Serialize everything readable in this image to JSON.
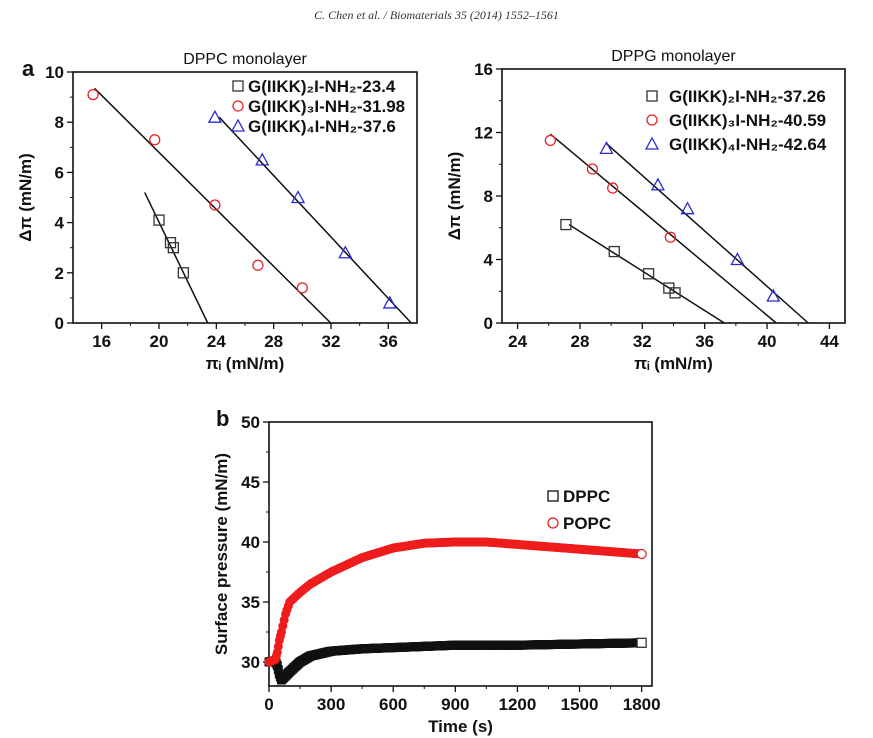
{
  "header": "C. Chen et al. / Biomaterials 35 (2014) 1552–1561",
  "chart_data": [
    {
      "panel": "a",
      "type": "scatter",
      "title": "DPPC monolayer",
      "xlabel": "πᵢ (mN/m)",
      "ylabel": "Δπ (mN/m)",
      "xlim": [
        14,
        38
      ],
      "ylim": [
        0,
        10
      ],
      "xticks": [
        16,
        20,
        24,
        28,
        32,
        36
      ],
      "yticks": [
        0,
        2,
        4,
        6,
        8,
        10
      ],
      "grid": false,
      "legend": "top-right",
      "series": [
        {
          "name": "G(IIKK)₂I-NH₂-23.4",
          "marker": "square",
          "color": "#333333",
          "x": [
            20,
            20.8,
            21,
            21.7
          ],
          "y": [
            4.1,
            3.2,
            3.0,
            2.0
          ],
          "fit": [
            [
              19,
              5.2
            ],
            [
              23.4,
              0
            ]
          ]
        },
        {
          "name": "G(IIKK)₃I-NH₂-31.98",
          "marker": "circle",
          "color": "#e8242a",
          "x": [
            15.4,
            19.7,
            23.9,
            26.9,
            30
          ],
          "y": [
            9.1,
            7.3,
            4.7,
            2.3,
            1.4
          ],
          "fit": [
            [
              15.5,
              9.35
            ],
            [
              31.98,
              0
            ]
          ]
        },
        {
          "name": "G(IIKK)₄I-NH₂-37.6",
          "marker": "triangle",
          "color": "#2a2ad0",
          "x": [
            23.9,
            27.2,
            29.7,
            33,
            36.1
          ],
          "y": [
            8.2,
            6.5,
            5.0,
            2.8,
            0.8
          ],
          "fit": [
            [
              24.2,
              8.2
            ],
            [
              37.6,
              0
            ]
          ]
        }
      ]
    },
    {
      "panel": "",
      "type": "scatter",
      "title": "DPPG monolayer",
      "xlabel": "πᵢ (mN/m)",
      "ylabel": "Δπ (mN/m)",
      "xlim": [
        23,
        45
      ],
      "ylim": [
        0,
        16
      ],
      "xticks": [
        24,
        28,
        32,
        36,
        40,
        44
      ],
      "yticks": [
        0,
        4,
        8,
        12,
        16
      ],
      "grid": false,
      "legend": "top-right",
      "series": [
        {
          "name": "G(IIKK)₂I-NH₂-37.26",
          "marker": "square",
          "color": "#333333",
          "x": [
            27.1,
            30.2,
            32.4,
            33.7,
            34.1
          ],
          "y": [
            6.2,
            4.5,
            3.1,
            2.2,
            1.9
          ],
          "fit": [
            [
              27.3,
              6.2
            ],
            [
              37.26,
              0
            ]
          ]
        },
        {
          "name": "G(IIKK)₃I-NH₂-40.59",
          "marker": "circle",
          "color": "#e8242a",
          "x": [
            26.1,
            28.8,
            30.1,
            33.8
          ],
          "y": [
            11.5,
            9.7,
            8.5,
            5.4
          ],
          "fit": [
            [
              26.1,
              11.9
            ],
            [
              40.59,
              0
            ]
          ]
        },
        {
          "name": "G(IIKK)₄I-NH₂-42.64",
          "marker": "triangle",
          "color": "#2a2ad0",
          "x": [
            29.7,
            33,
            34.9,
            38.1,
            40.4
          ],
          "y": [
            11.0,
            8.7,
            7.2,
            4.0,
            1.7
          ],
          "fit": [
            [
              29.7,
              11.3
            ],
            [
              42.64,
              0
            ]
          ]
        }
      ]
    },
    {
      "panel": "b",
      "type": "scatter",
      "title": "",
      "xlabel": "Time (s)",
      "ylabel": "Surface pressure (mN/m)",
      "xlim": [
        0,
        1850
      ],
      "ylim": [
        28,
        50
      ],
      "xticks": [
        0,
        300,
        600,
        900,
        1200,
        1500,
        1800
      ],
      "yticks": [
        30,
        35,
        40,
        45,
        50
      ],
      "grid": false,
      "legend": "right",
      "series": [
        {
          "name": "DPPC",
          "marker": "square",
          "color": "#111111",
          "x": [
            0,
            30,
            40,
            50,
            60,
            100,
            150,
            200,
            300,
            450,
            600,
            900,
            1200,
            1500,
            1800
          ],
          "y": [
            30,
            30.1,
            29.7,
            29,
            28.5,
            29.2,
            30,
            30.5,
            30.9,
            31.1,
            31.2,
            31.4,
            31.4,
            31.5,
            31.6
          ]
        },
        {
          "name": "POPC",
          "marker": "circle",
          "color": "#ee1c1c",
          "x": [
            0,
            30,
            40,
            50,
            60,
            80,
            100,
            150,
            200,
            300,
            450,
            600,
            750,
            900,
            1050,
            1200,
            1500,
            1800
          ],
          "y": [
            30,
            30.2,
            30.8,
            31.8,
            32.5,
            34,
            35,
            35.8,
            36.5,
            37.5,
            38.7,
            39.5,
            39.9,
            40,
            40,
            39.8,
            39.4,
            39.0
          ]
        }
      ]
    }
  ]
}
